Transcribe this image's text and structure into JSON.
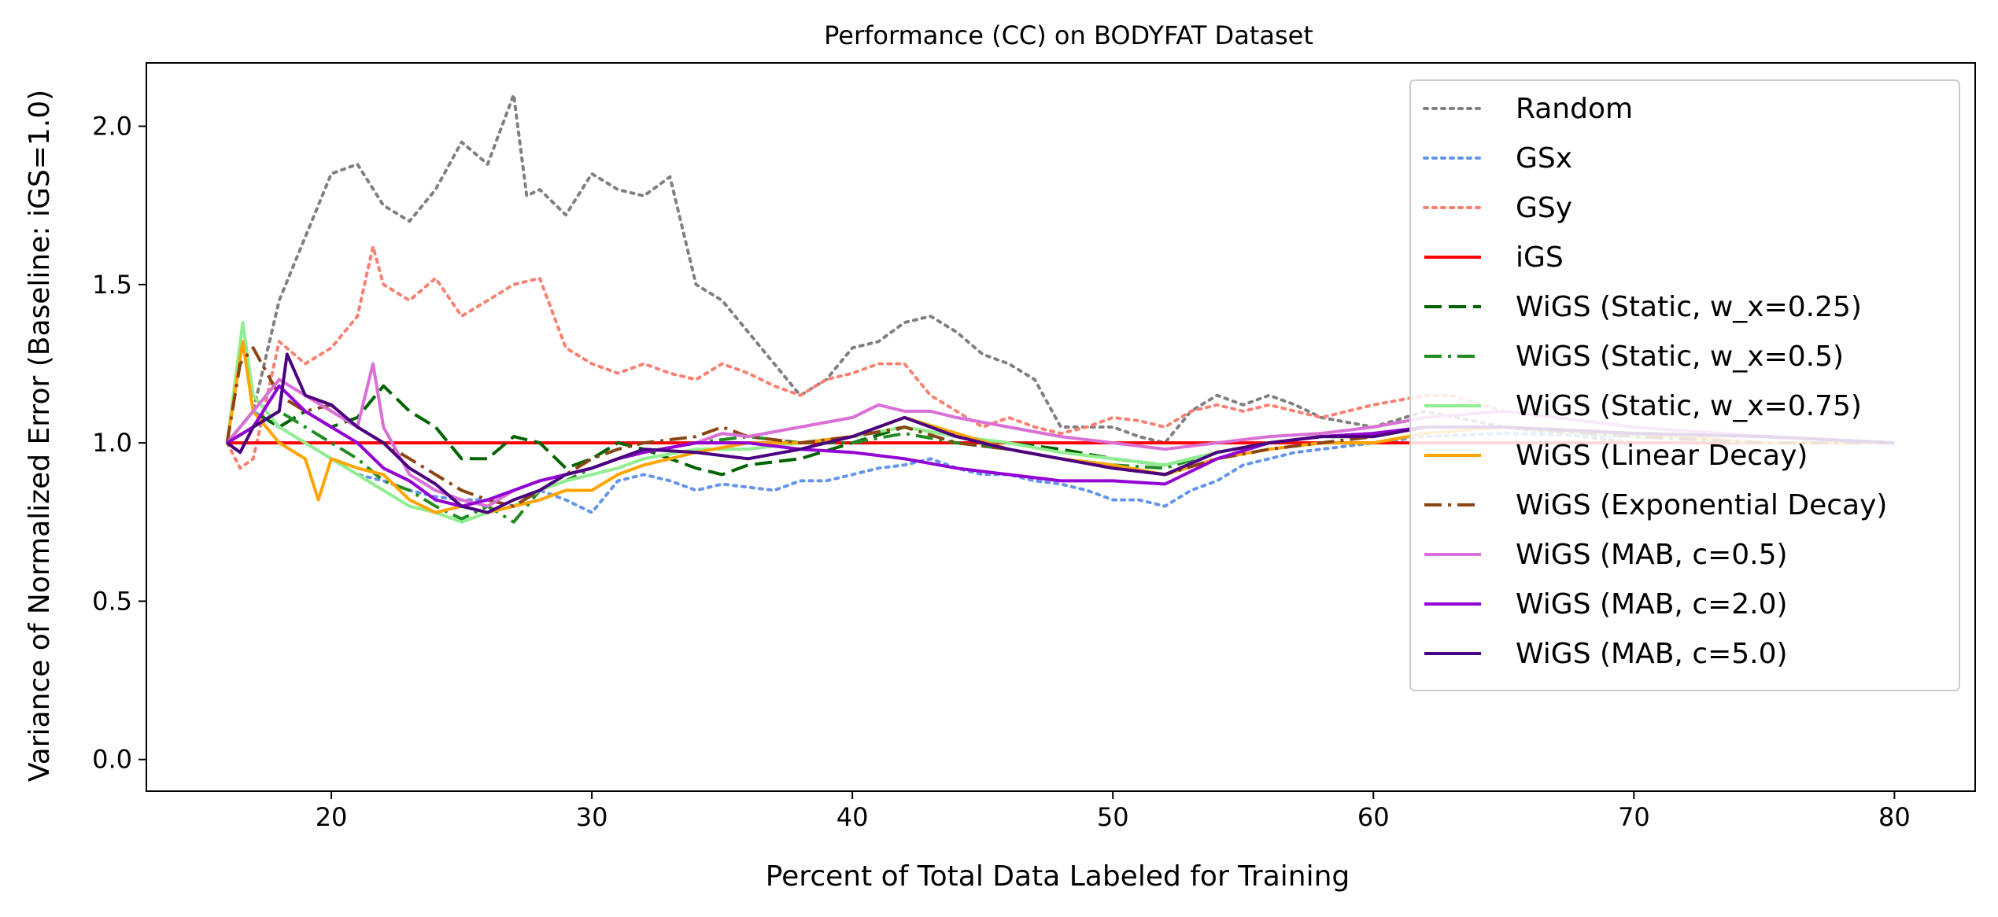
{
  "chart_data": {
    "type": "line",
    "title": "Performance (CC) on BODYFAT Dataset",
    "xlabel": "Percent of Total Data Labeled for Training",
    "ylabel": "Variance of Normalized Error (Baseline: iGS=1.0)",
    "xlim": [
      12.9,
      83.1
    ],
    "ylim": [
      -0.1,
      2.2
    ],
    "xticks": [
      20,
      30,
      40,
      50,
      60,
      70,
      80
    ],
    "yticks": [
      0.0,
      0.5,
      1.0,
      1.5,
      2.0
    ],
    "xtick_labels": [
      "20",
      "30",
      "40",
      "50",
      "60",
      "70",
      "80"
    ],
    "ytick_labels": [
      "0.0",
      "0.5",
      "1.0",
      "1.5",
      "2.0"
    ],
    "grid": false,
    "legend_position": "top-right",
    "series": [
      {
        "name": "Random",
        "color": "#808080",
        "style": "dotted",
        "x": [
          16,
          17,
          18,
          19,
          20,
          21,
          22,
          23,
          24,
          25,
          26,
          27,
          27.5,
          28,
          29,
          30,
          31,
          32,
          33,
          34,
          35,
          36,
          37,
          38,
          39,
          40,
          41,
          42,
          43,
          44,
          45,
          46,
          47,
          48,
          49,
          50,
          51,
          52,
          53,
          54,
          55,
          56,
          57,
          58,
          60,
          62,
          65,
          70,
          75,
          80
        ],
        "y": [
          1.0,
          1.1,
          1.45,
          1.65,
          1.85,
          1.88,
          1.75,
          1.7,
          1.8,
          1.95,
          1.88,
          2.1,
          1.78,
          1.8,
          1.72,
          1.85,
          1.8,
          1.78,
          1.84,
          1.5,
          1.45,
          1.35,
          1.25,
          1.15,
          1.2,
          1.3,
          1.32,
          1.38,
          1.4,
          1.35,
          1.28,
          1.25,
          1.2,
          1.05,
          1.05,
          1.05,
          1.02,
          1.0,
          1.1,
          1.15,
          1.12,
          1.15,
          1.12,
          1.08,
          1.05,
          1.1,
          1.05,
          1.0,
          1.0,
          1.0
        ]
      },
      {
        "name": "GSx",
        "color": "#6495ed",
        "style": "dotted",
        "x": [
          16,
          17,
          18,
          19,
          20,
          21,
          22,
          23,
          24,
          25,
          26,
          27,
          28,
          29,
          30,
          31,
          32,
          33,
          34,
          35,
          36,
          37,
          38,
          39,
          40,
          41,
          42,
          43,
          44,
          45,
          46,
          47,
          48,
          49,
          50,
          51,
          52,
          53,
          54,
          55,
          56,
          57,
          58,
          60,
          62,
          65,
          70,
          75,
          80
        ],
        "y": [
          1.0,
          1.1,
          1.05,
          1.0,
          0.95,
          0.9,
          0.88,
          0.85,
          0.83,
          0.82,
          0.82,
          0.8,
          0.85,
          0.82,
          0.78,
          0.88,
          0.9,
          0.88,
          0.85,
          0.87,
          0.86,
          0.85,
          0.88,
          0.88,
          0.9,
          0.92,
          0.93,
          0.95,
          0.92,
          0.9,
          0.9,
          0.88,
          0.87,
          0.85,
          0.82,
          0.82,
          0.8,
          0.85,
          0.88,
          0.93,
          0.95,
          0.97,
          0.98,
          1.0,
          1.02,
          1.03,
          1.02,
          1.0,
          1.0
        ]
      },
      {
        "name": "GSy",
        "color": "#fa8072",
        "style": "dotted",
        "x": [
          16,
          16.5,
          17,
          18,
          19,
          20,
          21,
          21.6,
          22,
          23,
          24,
          25,
          26,
          27,
          28,
          29,
          30,
          31,
          32,
          33,
          34,
          35,
          36,
          37,
          38,
          39,
          40,
          41,
          42,
          43,
          44,
          45,
          46,
          47,
          48,
          49,
          50,
          51,
          52,
          53,
          54,
          55,
          56,
          57,
          58,
          60,
          62,
          63,
          65,
          70,
          75,
          80
        ],
        "y": [
          1.0,
          0.92,
          0.95,
          1.32,
          1.25,
          1.3,
          1.4,
          1.62,
          1.5,
          1.45,
          1.52,
          1.4,
          1.45,
          1.5,
          1.52,
          1.3,
          1.25,
          1.22,
          1.25,
          1.22,
          1.2,
          1.25,
          1.22,
          1.18,
          1.15,
          1.2,
          1.22,
          1.25,
          1.25,
          1.15,
          1.1,
          1.05,
          1.08,
          1.05,
          1.03,
          1.05,
          1.08,
          1.07,
          1.05,
          1.1,
          1.12,
          1.1,
          1.12,
          1.1,
          1.08,
          1.12,
          1.15,
          1.15,
          1.1,
          1.05,
          1.02,
          1.0
        ]
      },
      {
        "name": "iGS",
        "color": "#ff0000",
        "style": "solid",
        "x": [
          16,
          80
        ],
        "y": [
          1.0,
          1.0
        ]
      },
      {
        "name": "WiGS (Static, w_x=0.25)",
        "color": "#006400",
        "style": "dashed",
        "x": [
          16,
          17,
          18,
          19,
          20,
          21,
          22,
          23,
          24,
          25,
          26,
          27,
          28,
          29,
          30,
          31,
          32,
          33,
          34,
          35,
          36,
          38,
          40,
          42,
          44,
          46,
          48,
          50,
          52,
          54,
          56,
          58,
          60,
          62,
          65,
          70,
          75,
          80
        ],
        "y": [
          1.0,
          1.1,
          1.05,
          1.1,
          1.05,
          1.08,
          1.18,
          1.1,
          1.05,
          0.95,
          0.95,
          1.02,
          1.0,
          0.92,
          0.95,
          1.0,
          0.98,
          0.95,
          0.92,
          0.9,
          0.93,
          0.95,
          1.0,
          1.05,
          1.02,
          1.0,
          0.98,
          0.95,
          0.93,
          0.97,
          1.0,
          1.02,
          1.02,
          1.05,
          1.05,
          1.03,
          1.02,
          1.0
        ]
      },
      {
        "name": "WiGS (Static, w_x=0.5)",
        "color": "#228b22",
        "style": "dashdot",
        "x": [
          16,
          17,
          18,
          19,
          20,
          21,
          22,
          23,
          24,
          25,
          26,
          27,
          28,
          29,
          30,
          31,
          32,
          34,
          36,
          38,
          40,
          42,
          44,
          46,
          48,
          50,
          52,
          54,
          56,
          58,
          60,
          62,
          65,
          70,
          75,
          80
        ],
        "y": [
          1.0,
          1.05,
          1.1,
          1.05,
          1.0,
          0.95,
          0.88,
          0.85,
          0.8,
          0.76,
          0.8,
          0.75,
          0.85,
          0.88,
          0.92,
          0.95,
          0.97,
          1.0,
          1.02,
          1.0,
          1.0,
          1.03,
          1.0,
          0.98,
          0.95,
          0.93,
          0.92,
          0.97,
          1.0,
          1.02,
          1.03,
          1.05,
          1.05,
          1.02,
          1.0,
          1.0
        ]
      },
      {
        "name": "WiGS (Static, w_x=0.75)",
        "color": "#90ee90",
        "style": "solid",
        "x": [
          16,
          16.6,
          17,
          18,
          19,
          20,
          21,
          22,
          23,
          24,
          25,
          26,
          27,
          28,
          29,
          30,
          31,
          32,
          34,
          36,
          38,
          40,
          42,
          44,
          46,
          48,
          50,
          52,
          54,
          56,
          58,
          60,
          62,
          65,
          70,
          75,
          80
        ],
        "y": [
          1.0,
          1.38,
          1.15,
          1.05,
          1.0,
          0.95,
          0.9,
          0.85,
          0.8,
          0.78,
          0.75,
          0.78,
          0.8,
          0.85,
          0.88,
          0.9,
          0.92,
          0.95,
          0.98,
          0.98,
          1.0,
          1.02,
          1.05,
          1.02,
          1.0,
          0.97,
          0.95,
          0.93,
          0.97,
          1.0,
          1.02,
          1.02,
          1.05,
          1.05,
          1.02,
          1.0,
          1.0
        ]
      },
      {
        "name": "WiGS (Linear Decay)",
        "color": "#ffa500",
        "style": "solid",
        "x": [
          16,
          16.6,
          17,
          18,
          19,
          19.5,
          20,
          21,
          22,
          23,
          24,
          25,
          26,
          27,
          28,
          29,
          30,
          31,
          32,
          34,
          36,
          38,
          40,
          42,
          44,
          46,
          48,
          50,
          52,
          54,
          56,
          58,
          60,
          62,
          65,
          70,
          75,
          80
        ],
        "y": [
          1.0,
          1.32,
          1.1,
          1.0,
          0.95,
          0.82,
          0.95,
          0.92,
          0.9,
          0.82,
          0.78,
          0.8,
          0.78,
          0.8,
          0.82,
          0.85,
          0.85,
          0.9,
          0.93,
          0.97,
          1.0,
          1.0,
          1.02,
          1.08,
          1.03,
          0.98,
          0.95,
          0.93,
          0.9,
          0.95,
          0.98,
          1.0,
          1.0,
          1.03,
          1.05,
          1.03,
          1.0,
          1.0
        ]
      },
      {
        "name": "WiGS (Exponential Decay)",
        "color": "#8b4513",
        "style": "dashdot",
        "x": [
          16,
          16.5,
          17,
          18,
          19,
          20,
          21,
          22,
          23,
          24,
          25,
          26,
          27,
          28,
          29,
          30,
          31,
          32,
          34,
          35,
          36,
          38,
          40,
          42,
          44,
          46,
          48,
          50,
          52,
          54,
          56,
          58,
          60,
          62,
          65,
          70,
          75,
          80
        ],
        "y": [
          1.0,
          1.25,
          1.3,
          1.15,
          1.1,
          1.12,
          1.05,
          1.0,
          0.95,
          0.9,
          0.85,
          0.82,
          0.8,
          0.85,
          0.9,
          0.95,
          0.98,
          1.0,
          1.02,
          1.05,
          1.02,
          1.0,
          1.02,
          1.05,
          1.0,
          0.98,
          0.95,
          0.92,
          0.9,
          0.95,
          0.98,
          1.0,
          1.02,
          1.05,
          1.05,
          1.02,
          1.0,
          1.0
        ]
      },
      {
        "name": "WiGS (MAB, c=0.5)",
        "color": "#da70d6",
        "style": "solid",
        "x": [
          16,
          17,
          18,
          19,
          20,
          21,
          21.6,
          22,
          23,
          24,
          25,
          26,
          27,
          28,
          29,
          30,
          31,
          32,
          34,
          35,
          36,
          38,
          40,
          41,
          42,
          43,
          44,
          46,
          48,
          50,
          52,
          54,
          56,
          58,
          60,
          62,
          65,
          67,
          70,
          75,
          80
        ],
        "y": [
          1.0,
          1.1,
          1.2,
          1.15,
          1.1,
          1.05,
          1.25,
          1.05,
          0.9,
          0.85,
          0.82,
          0.8,
          0.85,
          0.88,
          0.9,
          0.92,
          0.95,
          0.97,
          1.0,
          1.03,
          1.02,
          1.05,
          1.08,
          1.12,
          1.1,
          1.1,
          1.08,
          1.05,
          1.02,
          1.0,
          0.98,
          1.0,
          1.02,
          1.03,
          1.05,
          1.08,
          1.1,
          1.08,
          1.05,
          1.02,
          1.0
        ]
      },
      {
        "name": "WiGS (MAB, c=2.0)",
        "color": "#9400d3",
        "style": "solid",
        "x": [
          16,
          17,
          18,
          19,
          20,
          21,
          22,
          23,
          24,
          25,
          26,
          27,
          28,
          29,
          30,
          31,
          32,
          34,
          36,
          38,
          40,
          42,
          44,
          46,
          48,
          50,
          52,
          54,
          56,
          58,
          60,
          62,
          65,
          70,
          75,
          80
        ],
        "y": [
          1.0,
          1.05,
          1.18,
          1.1,
          1.05,
          1.0,
          0.92,
          0.88,
          0.82,
          0.8,
          0.82,
          0.85,
          0.88,
          0.9,
          0.92,
          0.95,
          0.97,
          1.0,
          1.0,
          0.98,
          0.97,
          0.95,
          0.92,
          0.9,
          0.88,
          0.88,
          0.87,
          0.95,
          1.0,
          1.02,
          1.03,
          1.05,
          1.05,
          1.03,
          1.02,
          1.0
        ]
      },
      {
        "name": "WiGS (MAB, c=5.0)",
        "color": "#4b0082",
        "style": "solid",
        "x": [
          16,
          16.5,
          17,
          18,
          18.3,
          19,
          20,
          21,
          22,
          23,
          24,
          25,
          26,
          27,
          28,
          29,
          30,
          31,
          32,
          34,
          36,
          38,
          40,
          42,
          44,
          46,
          48,
          50,
          52,
          54,
          56,
          58,
          60,
          62,
          65,
          70,
          75,
          80
        ],
        "y": [
          1.0,
          0.97,
          1.05,
          1.1,
          1.28,
          1.15,
          1.12,
          1.05,
          1.0,
          0.92,
          0.87,
          0.8,
          0.78,
          0.82,
          0.85,
          0.9,
          0.92,
          0.95,
          0.98,
          0.97,
          0.95,
          0.98,
          1.02,
          1.08,
          1.02,
          0.98,
          0.95,
          0.92,
          0.9,
          0.97,
          1.0,
          1.02,
          1.02,
          1.05,
          1.05,
          1.03,
          1.02,
          1.0
        ]
      }
    ]
  }
}
